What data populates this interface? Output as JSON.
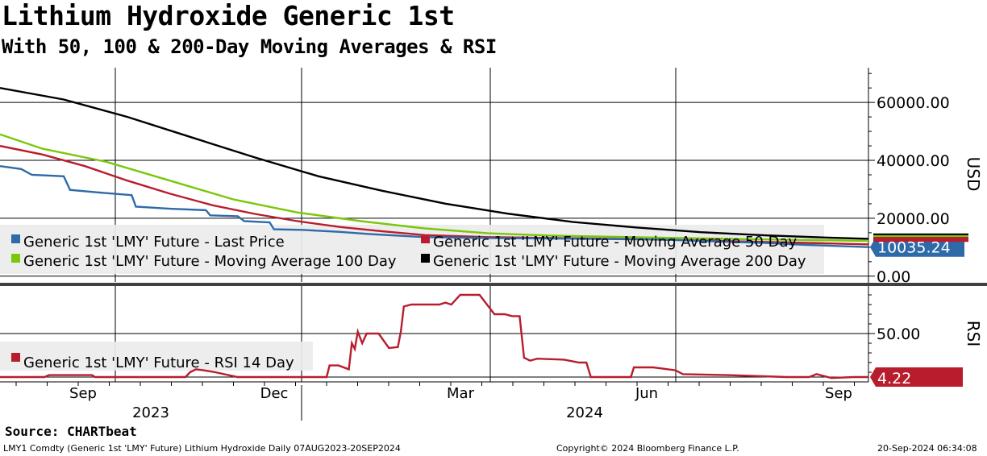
{
  "header": {
    "title": "Lithium Hydroxide Generic 1st",
    "subtitle": "With 50, 100 & 200-Day Moving Averages & RSI"
  },
  "colors": {
    "last_price": "#2e6aa8",
    "last_price_light": "#8fb0d4",
    "ma50": "#b81d2e",
    "ma50_light": "#dc9aa2",
    "ma100": "#7ac70c",
    "ma100_light": "#b8e07c",
    "ma200": "#000000",
    "rsi": "#b81d2e",
    "rsi_light": "#dc9aa2"
  },
  "chart_data": [
    {
      "type": "line",
      "panel": "price",
      "ylabel": "USD",
      "ylim": [
        -2000,
        72000
      ],
      "y_ticks": [
        0,
        20000,
        40000,
        60000
      ],
      "y_tick_labels": [
        "0.00",
        "20000.00",
        "40000.00",
        "60000.00"
      ],
      "x_range": [
        "07AUG2023",
        "20SEP2024"
      ],
      "series": [
        {
          "name": "Generic 1st 'LMY' Future - Last Price",
          "color_key": "last_price",
          "points": [
            [
              0,
              38000
            ],
            [
              10,
              37000
            ],
            [
              15,
              35000
            ],
            [
              30,
              34500
            ],
            [
              33,
              29800
            ],
            [
              45,
              29000
            ],
            [
              62,
              28000
            ],
            [
              64,
              24000
            ],
            [
              80,
              23300
            ],
            [
              97,
              22800
            ],
            [
              99,
              21000
            ],
            [
              112,
              20700
            ],
            [
              115,
              19000
            ],
            [
              127,
              18600
            ],
            [
              129,
              16200
            ],
            [
              142,
              16000
            ],
            [
              160,
              15300
            ],
            [
              175,
              14500
            ],
            [
              200,
              13500
            ],
            [
              230,
              13200
            ],
            [
              260,
              13000
            ],
            [
              290,
              12800
            ],
            [
              310,
              12700
            ],
            [
              330,
              12200
            ],
            [
              360,
              11500
            ],
            [
              380,
              10800
            ],
            [
              409,
              10035
            ]
          ]
        },
        {
          "name": "Generic 1st 'LMY' Future - Moving Average 50 Day",
          "color_key": "ma50",
          "points": [
            [
              0,
              45000
            ],
            [
              20,
              42000
            ],
            [
              40,
              38000
            ],
            [
              60,
              33000
            ],
            [
              80,
              28500
            ],
            [
              100,
              24500
            ],
            [
              120,
              21500
            ],
            [
              140,
              19000
            ],
            [
              160,
              17000
            ],
            [
              180,
              15500
            ],
            [
              200,
              14200
            ],
            [
              230,
              13500
            ],
            [
              260,
              13200
            ],
            [
              290,
              12900
            ],
            [
              320,
              12500
            ],
            [
              350,
              12000
            ],
            [
              380,
              11500
            ],
            [
              409,
              11000
            ]
          ]
        },
        {
          "name": "Generic 1st 'LMY' Future - Moving Average 100 Day",
          "color_key": "ma100",
          "points": [
            [
              0,
              49000
            ],
            [
              20,
              44000
            ],
            [
              50,
              39500
            ],
            [
              80,
              33000
            ],
            [
              110,
              26500
            ],
            [
              140,
              22000
            ],
            [
              170,
              19000
            ],
            [
              200,
              16500
            ],
            [
              230,
              14800
            ],
            [
              260,
              14000
            ],
            [
              290,
              13600
            ],
            [
              320,
              13200
            ],
            [
              350,
              12800
            ],
            [
              380,
              12500
            ],
            [
              409,
              12200
            ]
          ]
        },
        {
          "name": "Generic 1st 'LMY' Future - Moving Average 200 Day",
          "color_key": "ma200",
          "points": [
            [
              0,
              65000
            ],
            [
              30,
              61000
            ],
            [
              60,
              55000
            ],
            [
              90,
              48000
            ],
            [
              120,
              41000
            ],
            [
              150,
              34500
            ],
            [
              180,
              29500
            ],
            [
              210,
              25000
            ],
            [
              240,
              21500
            ],
            [
              270,
              18700
            ],
            [
              300,
              16800
            ],
            [
              330,
              15200
            ],
            [
              360,
              14100
            ],
            [
              390,
              13300
            ],
            [
              409,
              12900
            ]
          ]
        }
      ],
      "last_value_label": "10035.24"
    },
    {
      "type": "line",
      "panel": "rsi",
      "ylabel": "RSI",
      "ylim": [
        0,
        100
      ],
      "y_ticks": [
        50
      ],
      "y_tick_labels": [
        "50.00"
      ],
      "series": [
        {
          "name": "Generic 1st 'LMY' Future - RSI 14 Day",
          "color_key": "rsi",
          "points": [
            [
              0,
              5
            ],
            [
              30,
              5
            ],
            [
              33,
              7
            ],
            [
              62,
              7
            ],
            [
              64,
              5
            ],
            [
              125,
              5
            ],
            [
              128,
              10
            ],
            [
              132,
              13
            ],
            [
              137,
              12
            ],
            [
              145,
              10
            ],
            [
              160,
              5
            ],
            [
              200,
              5
            ],
            [
              220,
              5
            ],
            [
              222,
              17
            ],
            [
              228,
              17
            ],
            [
              235,
              13
            ],
            [
              237,
              40
            ],
            [
              239,
              34
            ],
            [
              241,
              52
            ],
            [
              244,
              40
            ],
            [
              247,
              50
            ],
            [
              255,
              50
            ],
            [
              262,
              35
            ],
            [
              268,
              36
            ],
            [
              270,
              52
            ],
            [
              272,
              78
            ],
            [
              277,
              80
            ],
            [
              296,
              80
            ],
            [
              300,
              82
            ],
            [
              304,
              80
            ],
            [
              310,
              90
            ],
            [
              323,
              90
            ],
            [
              333,
              70
            ],
            [
              340,
              70
            ],
            [
              345,
              68
            ],
            [
              350,
              68
            ],
            [
              353,
              25
            ],
            [
              357,
              22
            ],
            [
              362,
              24
            ],
            [
              380,
              23
            ],
            [
              390,
              20
            ],
            [
              395,
              20
            ],
            [
              398,
              5
            ],
            [
              410,
              5
            ],
            [
              425,
              5
            ],
            [
              427,
              15
            ],
            [
              440,
              15
            ],
            [
              455,
              12
            ],
            [
              460,
              8
            ],
            [
              490,
              7
            ],
            [
              530,
              5
            ],
            [
              545,
              5
            ],
            [
              550,
              8
            ],
            [
              555,
              6
            ],
            [
              560,
              4
            ],
            [
              575,
              5
            ],
            [
              585,
              5
            ]
          ]
        }
      ],
      "last_value_label": "4.22"
    }
  ],
  "x_axis": {
    "month_labels": [
      "Sep",
      "Dec",
      "Mar",
      "Jun",
      "Sep"
    ],
    "year_labels": [
      "2023",
      "2024"
    ]
  },
  "legend_price": {
    "items": [
      "Generic 1st 'LMY' Future - Last Price",
      "Generic 1st 'LMY' Future - Moving Average 50 Day",
      "Generic 1st 'LMY' Future - Moving Average 100 Day",
      "Generic 1st 'LMY' Future - Moving Average 200 Day"
    ]
  },
  "legend_rsi": {
    "items": [
      "Generic 1st 'LMY' Future - RSI 14 Day"
    ]
  },
  "source": "Source: CHARTbeat",
  "footer": {
    "left": "LMY1 Comdty (Generic 1st 'LMY' Future) Lithium Hydroxide  Daily 07AUG2023-20SEP2024",
    "center": "Copyright© 2024 Bloomberg Finance L.P.",
    "right": "20-Sep-2024 06:34:08"
  }
}
